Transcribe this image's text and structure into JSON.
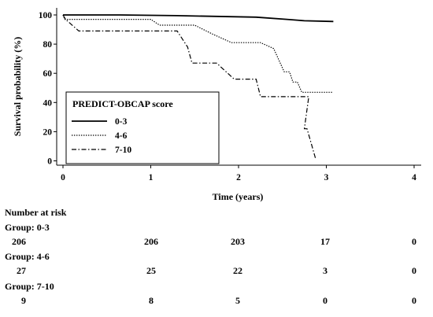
{
  "chart_data": {
    "type": "line",
    "subtype": "kaplan-meier-step",
    "xlabel": "Time (years)",
    "ylabel": "Survival probability (%)",
    "xlim": [
      0,
      4
    ],
    "ylim": [
      0,
      100
    ],
    "x_ticks": [
      "0",
      "1",
      "2",
      "3",
      "4"
    ],
    "y_ticks": [
      "0",
      "20",
      "40",
      "60",
      "80",
      "100"
    ],
    "grid": false,
    "legend": {
      "title": "PREDICT-OBCAP score",
      "position": "bottom-left"
    },
    "series": [
      {
        "name": "0-3",
        "line_style": "solid",
        "points": [
          [
            0,
            100
          ],
          [
            0.65,
            100
          ],
          [
            1.3,
            99.5
          ],
          [
            2.2,
            98.5
          ],
          [
            2.55,
            97
          ],
          [
            2.75,
            96
          ],
          [
            3.08,
            95.5
          ]
        ]
      },
      {
        "name": "4-6",
        "line_style": "dotted",
        "points": [
          [
            0,
            100
          ],
          [
            0.02,
            97
          ],
          [
            1.0,
            97
          ],
          [
            1.1,
            93
          ],
          [
            1.5,
            93
          ],
          [
            1.7,
            87
          ],
          [
            1.92,
            81
          ],
          [
            2.25,
            81
          ],
          [
            2.4,
            77
          ],
          [
            2.52,
            61
          ],
          [
            2.58,
            61
          ],
          [
            2.62,
            54
          ],
          [
            2.67,
            54
          ],
          [
            2.72,
            47
          ],
          [
            3.08,
            47
          ]
        ]
      },
      {
        "name": "7-10",
        "line_style": "dash-dot",
        "points": [
          [
            0,
            100
          ],
          [
            0.03,
            97
          ],
          [
            0.18,
            89
          ],
          [
            1.3,
            89
          ],
          [
            1.42,
            78
          ],
          [
            1.47,
            67
          ],
          [
            1.75,
            67
          ],
          [
            1.95,
            56
          ],
          [
            2.2,
            56
          ],
          [
            2.25,
            44
          ],
          [
            2.8,
            44
          ],
          [
            2.75,
            22
          ],
          [
            2.78,
            22
          ],
          [
            2.88,
            1
          ]
        ]
      }
    ]
  },
  "risk_table": {
    "title": "Number at risk",
    "groups": [
      {
        "label": "Group: 0-3",
        "values": [
          "206",
          "206",
          "203",
          "17",
          "0"
        ]
      },
      {
        "label": "Group: 4-6",
        "values": [
          "27",
          "25",
          "22",
          "3",
          "0"
        ]
      },
      {
        "label": "Group: 7-10",
        "values": [
          "9",
          "8",
          "5",
          "0",
          "0"
        ]
      }
    ]
  }
}
